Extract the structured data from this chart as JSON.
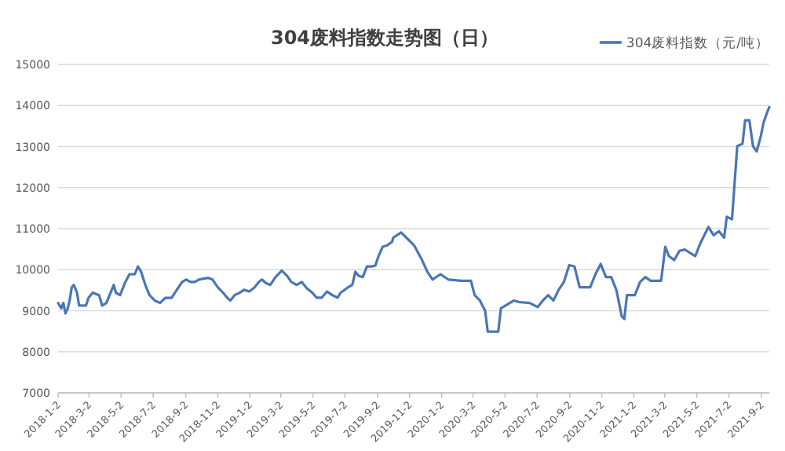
{
  "chart_data": {
    "type": "line",
    "title": "304废料指数走势图（日）",
    "xlim": [
      "2018-01-02",
      "2021-09-17"
    ],
    "ylim": [
      7000,
      15000
    ],
    "yticks": [
      7000,
      8000,
      9000,
      10000,
      11000,
      12000,
      13000,
      14000,
      15000
    ],
    "xticks": [
      {
        "value": "2018-01-02",
        "label": "2018-1-2"
      },
      {
        "value": "2018-03-02",
        "label": "2018-3-2"
      },
      {
        "value": "2018-05-02",
        "label": "2018-5-2"
      },
      {
        "value": "2018-07-02",
        "label": "2018-7-2"
      },
      {
        "value": "2018-09-02",
        "label": "2018-9-2"
      },
      {
        "value": "2018-11-02",
        "label": "2018-11-2"
      },
      {
        "value": "2019-01-02",
        "label": "2019-1-2"
      },
      {
        "value": "2019-03-02",
        "label": "2019-3-2"
      },
      {
        "value": "2019-05-02",
        "label": "2019-5-2"
      },
      {
        "value": "2019-07-02",
        "label": "2019-7-2"
      },
      {
        "value": "2019-09-02",
        "label": "2019-9-2"
      },
      {
        "value": "2019-11-02",
        "label": "2019-11-2"
      },
      {
        "value": "2020-01-02",
        "label": "2020-1-2"
      },
      {
        "value": "2020-03-02",
        "label": "2020-3-2"
      },
      {
        "value": "2020-05-02",
        "label": "2020-5-2"
      },
      {
        "value": "2020-07-02",
        "label": "2020-7-2"
      },
      {
        "value": "2020-09-02",
        "label": "2020-9-2"
      },
      {
        "value": "2020-11-02",
        "label": "2020-11-2"
      },
      {
        "value": "2021-01-02",
        "label": "2021-1-2"
      },
      {
        "value": "2021-03-02",
        "label": "2021-3-2"
      },
      {
        "value": "2021-05-02",
        "label": "2021-5-2"
      },
      {
        "value": "2021-07-02",
        "label": "2021-7-2"
      },
      {
        "value": "2021-09-02",
        "label": "2021-9-2"
      }
    ],
    "grid": "y",
    "legend": "top right",
    "marker": "none",
    "line_style": "solid",
    "x": [
      "2018-01-02",
      "2018-01-08",
      "2018-01-12",
      "2018-01-16",
      "2018-01-20",
      "2018-01-24",
      "2018-01-28",
      "2018-02-01",
      "2018-02-07",
      "2018-02-11",
      "2018-02-24",
      "2018-03-01",
      "2018-03-09",
      "2018-03-21",
      "2018-03-27",
      "2018-04-04",
      "2018-04-10",
      "2018-04-18",
      "2018-04-22",
      "2018-04-30",
      "2018-05-10",
      "2018-05-18",
      "2018-05-28",
      "2018-06-03",
      "2018-06-09",
      "2018-06-17",
      "2018-06-25",
      "2018-07-05",
      "2018-07-15",
      "2018-07-25",
      "2018-08-06",
      "2018-08-16",
      "2018-08-26",
      "2018-09-03",
      "2018-09-11",
      "2018-09-19",
      "2018-09-27",
      "2018-10-15",
      "2018-10-23",
      "2018-11-02",
      "2018-11-12",
      "2018-11-20",
      "2018-11-26",
      "2018-12-04",
      "2018-12-14",
      "2018-12-22",
      "2019-01-01",
      "2019-01-11",
      "2019-01-19",
      "2019-01-25",
      "2019-02-02",
      "2019-02-10",
      "2019-02-20",
      "2019-03-04",
      "2019-03-14",
      "2019-03-22",
      "2019-04-01",
      "2019-04-11",
      "2019-04-21",
      "2019-05-01",
      "2019-05-09",
      "2019-05-19",
      "2019-05-29",
      "2019-06-08",
      "2019-06-18",
      "2019-06-24",
      "2019-07-08",
      "2019-07-16",
      "2019-07-22",
      "2019-07-28",
      "2019-08-05",
      "2019-08-13",
      "2019-08-21",
      "2019-08-29",
      "2019-09-04",
      "2019-09-12",
      "2019-09-20",
      "2019-09-30",
      "2019-10-02",
      "2019-10-17",
      "2019-10-27",
      "2019-11-11",
      "2019-11-26",
      "2019-12-06",
      "2019-12-16",
      "2019-12-31",
      "2020-01-15",
      "2020-02-09",
      "2020-02-27",
      "2020-03-05",
      "2020-03-15",
      "2020-03-25",
      "2020-03-30",
      "2020-04-19",
      "2020-04-24",
      "2020-05-19",
      "2020-05-29",
      "2020-06-18",
      "2020-07-03",
      "2020-07-13",
      "2020-07-23",
      "2020-08-02",
      "2020-08-12",
      "2020-08-22",
      "2020-09-01",
      "2020-09-11",
      "2020-09-21",
      "2020-10-11",
      "2020-10-21",
      "2020-10-31",
      "2020-11-10",
      "2020-11-20",
      "2020-11-30",
      "2020-12-10",
      "2020-12-15",
      "2020-12-20",
      "2021-01-04",
      "2021-01-14",
      "2021-01-24",
      "2021-02-03",
      "2021-02-23",
      "2021-03-03",
      "2021-03-10",
      "2021-03-20",
      "2021-03-30",
      "2021-04-09",
      "2021-04-29",
      "2021-05-09",
      "2021-05-24",
      "2021-06-03",
      "2021-06-13",
      "2021-06-23",
      "2021-06-28",
      "2021-07-08",
      "2021-07-18",
      "2021-07-28",
      "2021-08-02",
      "2021-08-10",
      "2021-08-17",
      "2021-08-24",
      "2021-09-01",
      "2021-09-06",
      "2021-09-13",
      "2021-09-17"
    ],
    "series": [
      {
        "name": "304废料指数（元/吨）",
        "color": "#4a76b4",
        "values": [
          9190,
          9060,
          9190,
          8935,
          9040,
          9250,
          9570,
          9630,
          9440,
          9125,
          9125,
          9315,
          9440,
          9380,
          9125,
          9190,
          9380,
          9630,
          9440,
          9380,
          9700,
          9890,
          9890,
          10080,
          9950,
          9630,
          9380,
          9250,
          9190,
          9315,
          9315,
          9510,
          9700,
          9760,
          9700,
          9700,
          9760,
          9800,
          9760,
          9570,
          9440,
          9315,
          9250,
          9380,
          9440,
          9510,
          9470,
          9570,
          9700,
          9760,
          9670,
          9630,
          9820,
          9980,
          9850,
          9700,
          9630,
          9700,
          9540,
          9440,
          9320,
          9320,
          9470,
          9380,
          9320,
          9440,
          9570,
          9630,
          9950,
          9850,
          9820,
          10080,
          10080,
          10100,
          10330,
          10560,
          10590,
          10680,
          10780,
          10907,
          10780,
          10590,
          10233,
          9950,
          9760,
          9890,
          9760,
          9730,
          9730,
          9380,
          9250,
          9000,
          8490,
          8490,
          9060,
          9250,
          9210,
          9190,
          9090,
          9250,
          9380,
          9250,
          9510,
          9700,
          10110,
          10080,
          9570,
          9570,
          9890,
          10140,
          9820,
          9820,
          9500,
          8870,
          8800,
          9380,
          9380,
          9700,
          9820,
          9730,
          9730,
          10560,
          10330,
          10233,
          10460,
          10490,
          10330,
          10650,
          11040,
          10840,
          10940,
          10780,
          11290,
          11230,
          13010,
          13070,
          13640,
          13640,
          13010,
          12880,
          13260,
          13580,
          13835,
          13960
        ]
      }
    ]
  }
}
